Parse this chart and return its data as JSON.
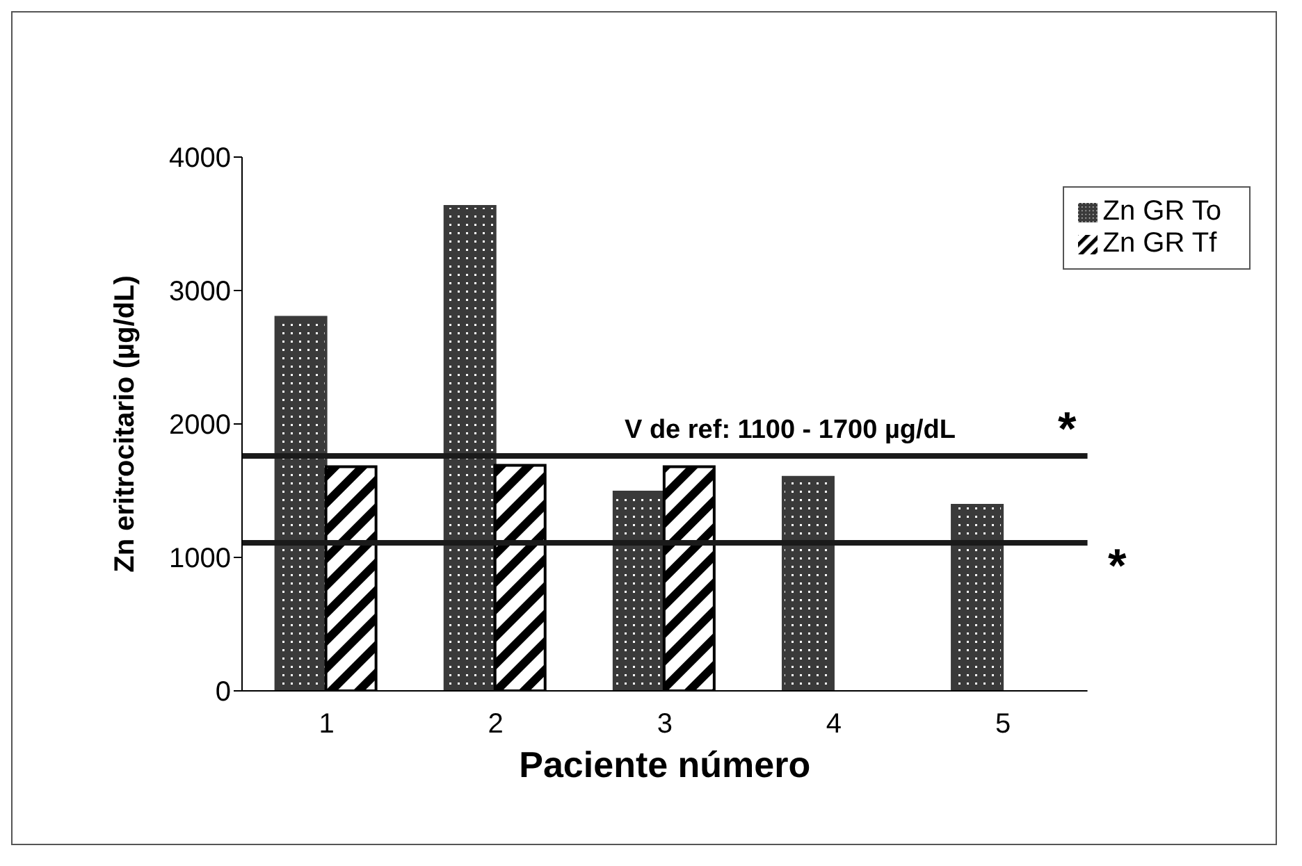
{
  "chart_data": {
    "type": "bar",
    "xlabel": "Paciente número",
    "ylabel": "Zn eritrocitario (µg/dL)",
    "categories": [
      "1",
      "2",
      "3",
      "4",
      "5"
    ],
    "series": [
      {
        "name": "Zn GR To",
        "color": "#3a3a3a",
        "values": [
          2800,
          3630,
          1490,
          1600,
          1390
        ]
      },
      {
        "name": "Zn GR Tf",
        "color": "#000000",
        "values": [
          1680,
          1690,
          1680,
          null,
          null
        ]
      }
    ],
    "ylim": [
      0,
      4000
    ],
    "yticks": [
      0,
      1000,
      2000,
      3000,
      4000
    ],
    "grid": false,
    "legend": "top right",
    "ref_lines": [
      {
        "axis": "y",
        "value": 1760,
        "label": "*",
        "color": "#1a1a1a"
      },
      {
        "axis": "y",
        "value": 1110,
        "label": "*",
        "color": "#1a1a1a"
      }
    ],
    "annotations": [
      "V de ref: 1100 - 1700 µg/dL"
    ]
  }
}
